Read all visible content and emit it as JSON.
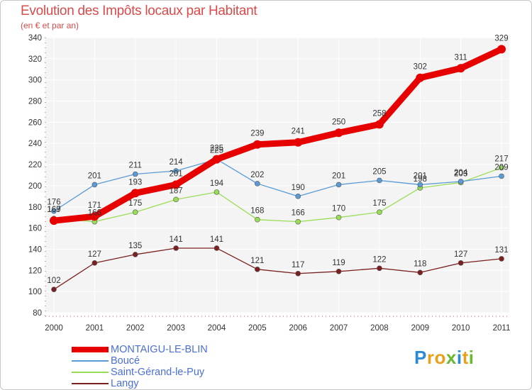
{
  "title": "Evolution des Impôts locaux par Habitant",
  "subtitle": "(en € et par an)",
  "logo_text": "Proxiti",
  "chart_data": {
    "type": "line",
    "title": "Evolution des Impôts locaux par Habitant",
    "subtitle": "(en € et par an)",
    "x": [
      "2000",
      "2001",
      "2002",
      "2003",
      "2004",
      "2005",
      "2006",
      "2007",
      "2008",
      "2009",
      "2010",
      "2011"
    ],
    "ylim": [
      80,
      340
    ],
    "yticks": [
      80,
      100,
      120,
      140,
      160,
      180,
      200,
      220,
      240,
      260,
      280,
      300,
      320,
      340
    ],
    "grid": true,
    "legend_position": "bottom-left",
    "series": [
      {
        "name": "MONTAIGU-LE-BLIN",
        "color": "#e60000",
        "values": [
          167,
          171,
          193,
          201,
          225,
          239,
          241,
          250,
          258,
          302,
          311,
          329
        ]
      },
      {
        "name": "Boucé",
        "color": "#5b9bd5",
        "values": [
          176,
          201,
          211,
          214,
          225,
          202,
          190,
          201,
          205,
          201,
          204,
          209
        ]
      },
      {
        "name": "Saint-Gérand-le-Puy",
        "color": "#99dd55",
        "values": [
          169,
          166,
          175,
          187,
          194,
          168,
          166,
          170,
          175,
          198,
          203,
          217
        ]
      },
      {
        "name": "Langy",
        "color": "#7a2020",
        "values": [
          102,
          127,
          135,
          141,
          141,
          121,
          117,
          119,
          122,
          118,
          127,
          131
        ]
      }
    ]
  }
}
